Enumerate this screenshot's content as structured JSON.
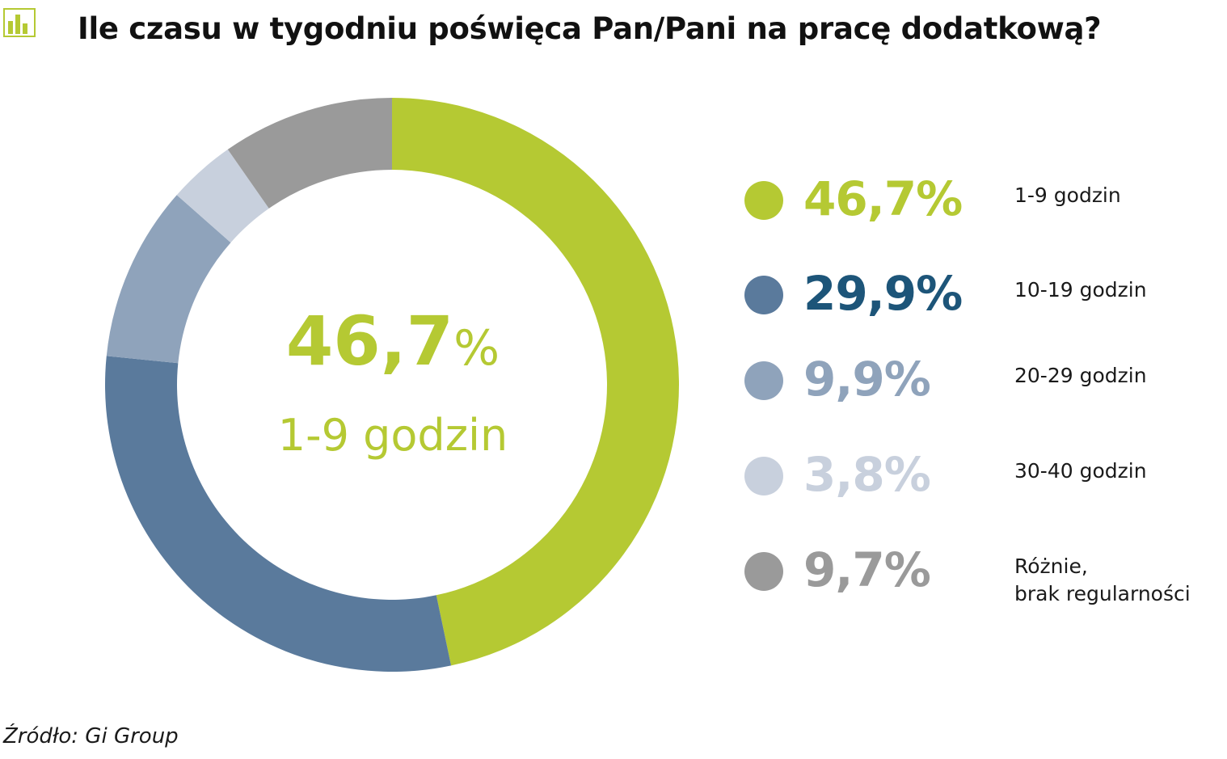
{
  "header": {
    "title": "Ile czasu w tygodniu poświęca Pan/Pani na pracę dodatkową?",
    "icon": "bar-chart-icon",
    "icon_color": "#b5c933"
  },
  "center": {
    "value": "46,7",
    "percent_sign": "%",
    "label": "1-9 godzin",
    "color": "#b5c933"
  },
  "chart_data": {
    "type": "pie",
    "title": "Ile czasu w tygodniu poświęca Pan/Pani na pracę dodatkową?",
    "donut": true,
    "legend_position": "right",
    "series": [
      {
        "label": "1-9 godzin",
        "value": 46.7,
        "display": "46,7%",
        "color": "#b5c933",
        "text_color": "#b5c933"
      },
      {
        "label": "10-19 godzin",
        "value": 29.9,
        "display": "29,9%",
        "color": "#5a7a9c",
        "text_color": "#1d5579"
      },
      {
        "label": "20-29 godzin",
        "value": 9.9,
        "display": "9,9%",
        "color": "#8fa3bb",
        "text_color": "#8fa3bb"
      },
      {
        "label": "30-40 godzin",
        "value": 3.8,
        "display": "3,8%",
        "color": "#c8d0dd",
        "text_color": "#c8d0dd"
      },
      {
        "label": "Różnie,\nbrak regularności",
        "value": 9.7,
        "display": "9,7%",
        "color": "#9a9a9a",
        "text_color": "#9a9a9a"
      }
    ]
  },
  "footer": {
    "source": "Źródło: Gi Group"
  }
}
